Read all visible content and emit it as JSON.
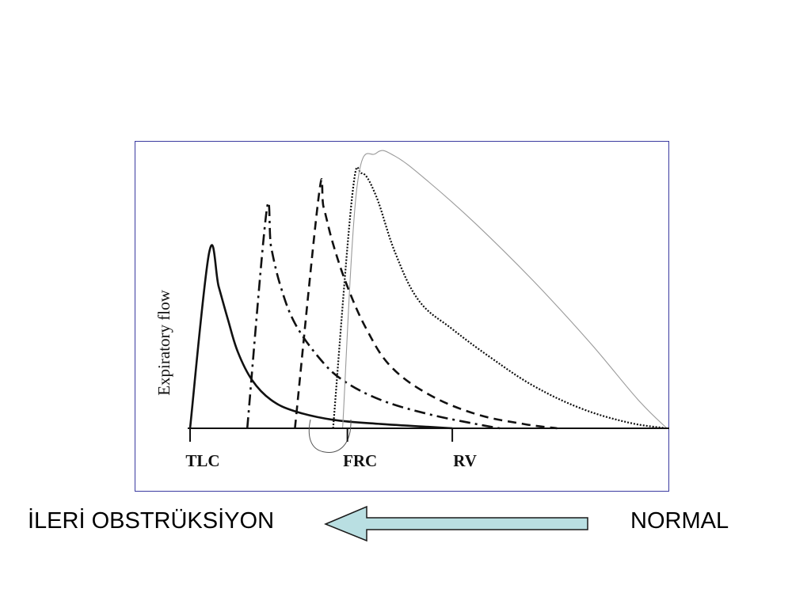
{
  "chart_data": {
    "type": "line",
    "ylabel": "Expiratory flow",
    "xlabel": "",
    "x_ticks": [
      {
        "label": "TLC",
        "value": 0
      },
      {
        "label": "FRC",
        "value": 0.33
      },
      {
        "label": "RV",
        "value": 0.55
      }
    ],
    "xlim": [
      0,
      1
    ],
    "ylim": [
      0,
      1
    ],
    "grid": false,
    "legend": "none",
    "series": [
      {
        "style": "solid",
        "x": [
          0,
          0.04,
          0.06,
          0.08,
          0.1,
          0.13,
          0.17,
          0.22,
          0.3,
          0.4,
          0.5,
          0.55
        ],
        "y": [
          0,
          0.62,
          0.5,
          0.38,
          0.27,
          0.17,
          0.1,
          0.06,
          0.03,
          0.015,
          0.005,
          0
        ]
      },
      {
        "style": "dash-dot",
        "x": [
          0.12,
          0.16,
          0.17,
          0.19,
          0.22,
          0.27,
          0.32,
          0.4,
          0.5,
          0.6,
          0.65
        ],
        "y": [
          0,
          0.76,
          0.64,
          0.5,
          0.37,
          0.25,
          0.17,
          0.1,
          0.05,
          0.015,
          0
        ]
      },
      {
        "style": "dashed",
        "x": [
          0.22,
          0.27,
          0.28,
          0.3,
          0.33,
          0.37,
          0.42,
          0.5,
          0.6,
          0.7,
          0.77
        ],
        "y": [
          0,
          0.82,
          0.78,
          0.65,
          0.5,
          0.35,
          0.22,
          0.12,
          0.05,
          0.015,
          0
        ]
      },
      {
        "style": "dotted",
        "x": [
          0.3,
          0.34,
          0.36,
          0.39,
          0.43,
          0.48,
          0.55,
          0.63,
          0.72,
          0.82,
          0.92,
          1.0
        ],
        "y": [
          0,
          0.82,
          0.9,
          0.82,
          0.62,
          0.45,
          0.35,
          0.25,
          0.15,
          0.07,
          0.02,
          0
        ]
      },
      {
        "style": "thin",
        "x": [
          0.32,
          0.35,
          0.39,
          0.43,
          0.5,
          0.6,
          0.72,
          0.84,
          0.94,
          1.0
        ],
        "y": [
          0,
          0.85,
          0.97,
          0.96,
          0.87,
          0.72,
          0.52,
          0.3,
          0.1,
          0
        ]
      }
    ]
  },
  "captions": {
    "left": "İLERİ OBSTRÜKSİYON",
    "right": "NORMAL"
  },
  "arrow": {
    "direction": "left",
    "fill": "#b9dfe2",
    "stroke": "#1a1a1a"
  },
  "colors": {
    "frame": "#3a3aa0",
    "curve": "#111111",
    "curve_thin": "#9a9a9a"
  }
}
